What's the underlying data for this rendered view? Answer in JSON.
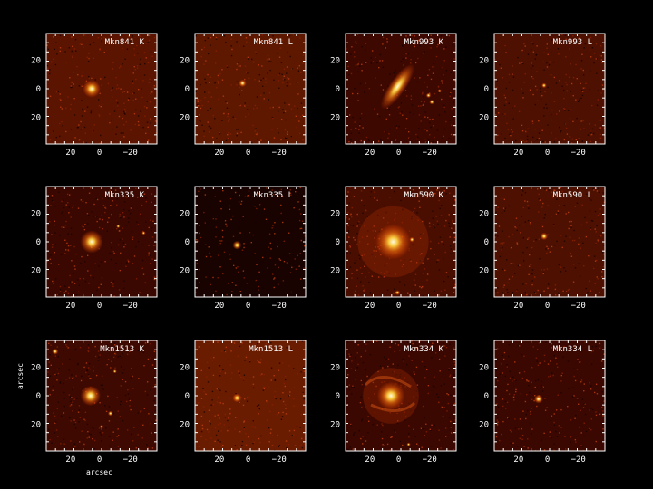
{
  "figure": {
    "ylabel": "arcsec",
    "xlabel": "arcsec",
    "x_ticks": [
      "20",
      "0",
      "−20"
    ],
    "y_ticks": [
      "20",
      "0",
      "20"
    ],
    "panels": [
      {
        "title": "Mkn841 K",
        "object": "Mkn841",
        "band": "K"
      },
      {
        "title": "Mkn841 L",
        "object": "Mkn841",
        "band": "L"
      },
      {
        "title": "Mkn993 K",
        "object": "Mkn993",
        "band": "K"
      },
      {
        "title": "Mkn993 L",
        "object": "Mkn993",
        "band": "L"
      },
      {
        "title": "Mkn335 K",
        "object": "Mkn335",
        "band": "K"
      },
      {
        "title": "Mkn335 L",
        "object": "Mkn335",
        "band": "L"
      },
      {
        "title": "Mkn590 K",
        "object": "Mkn590",
        "band": "K"
      },
      {
        "title": "Mkn590 L",
        "object": "Mkn590",
        "band": "L"
      },
      {
        "title": "Mkn1513 K",
        "object": "Mkn1513",
        "band": "K"
      },
      {
        "title": "Mkn1513 L",
        "object": "Mkn1513",
        "band": "L"
      },
      {
        "title": "Mkn334 K",
        "object": "Mkn334",
        "band": "K"
      },
      {
        "title": "Mkn334 L",
        "object": "Mkn334",
        "band": "L"
      }
    ]
  },
  "colors": {
    "background": "#000000",
    "image_base": "#4a0a00",
    "source_core": "#fff4b0"
  }
}
